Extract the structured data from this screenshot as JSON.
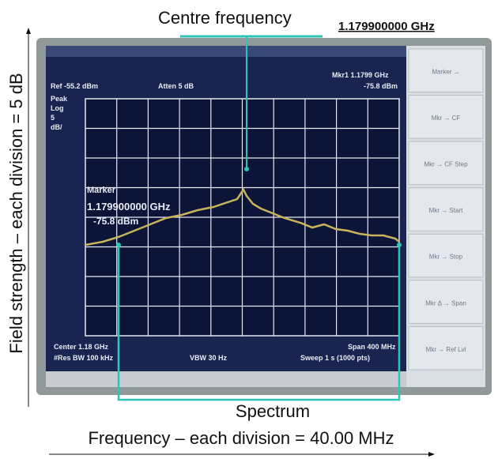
{
  "annotations": {
    "centre_frequency_label": "Centre frequency",
    "centre_frequency_value": "1.179900000 GHz",
    "spectrum_label": "Spectrum",
    "x_axis_label": "Frequency – each division = 40.00 MHz",
    "y_axis_label": "Field strength – each division = 5 dB"
  },
  "screen": {
    "ref_level": "Ref -55.2 dBm",
    "atten": "Atten 5 dB",
    "marker_readout": "Mkr1 1.1799 GHz",
    "marker_readout_level": "-75.8 dBm",
    "scale": [
      "Peak",
      "Log",
      "5",
      "dB/"
    ],
    "marker_title": "Marker",
    "marker_freq": "1.179900000 GHz",
    "marker_level": "-75.8 dBm",
    "center": "Center 1.18 GHz",
    "span": "Span 400 MHz",
    "res_bw": "#Res BW 100 kHz",
    "vbw": "VBW 30 Hz",
    "sweep": "Sweep 1 s (1000 pts)"
  },
  "softkeys": [
    "Marker →",
    "Mkr → CF",
    "Mkr → CF Step",
    "Mkr → Start",
    "Mkr → Stop",
    "Mkr Δ → Span",
    "Mkr → Ref Lvl"
  ]
}
